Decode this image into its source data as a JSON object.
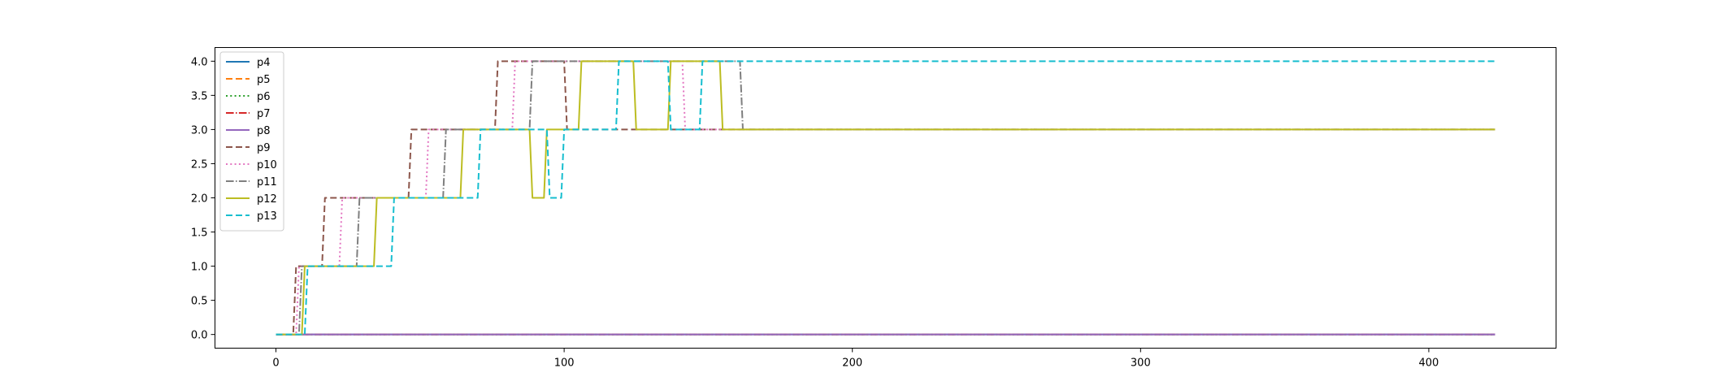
{
  "chart_data": {
    "type": "line",
    "title": "",
    "xlabel": "",
    "ylabel": "",
    "xlim": [
      -21.15,
      444.15
    ],
    "ylim": [
      -0.2,
      4.2
    ],
    "xticks": [
      0,
      100,
      200,
      300,
      400
    ],
    "yticks": [
      0.0,
      0.5,
      1.0,
      1.5,
      2.0,
      2.5,
      3.0,
      3.5,
      4.0
    ],
    "grid": false,
    "legend_position": "upper-left",
    "series": [
      {
        "name": "p4",
        "color": "#1f77b4",
        "dash": "solid",
        "points": [
          [
            0,
            0
          ],
          [
            423,
            0
          ]
        ]
      },
      {
        "name": "p5",
        "color": "#ff7f0e",
        "dash": "dashed",
        "points": [
          [
            0,
            0
          ],
          [
            423,
            0
          ]
        ]
      },
      {
        "name": "p6",
        "color": "#2ca02c",
        "dash": "dotted",
        "points": [
          [
            0,
            0
          ],
          [
            423,
            0
          ]
        ]
      },
      {
        "name": "p7",
        "color": "#d62728",
        "dash": "dashdot",
        "points": [
          [
            0,
            0
          ],
          [
            423,
            0
          ]
        ]
      },
      {
        "name": "p8",
        "color": "#9467bd",
        "dash": "solid",
        "points": [
          [
            0,
            0
          ],
          [
            423,
            0
          ]
        ]
      },
      {
        "name": "p9",
        "color": "#8c564b",
        "dash": "dashed",
        "points": [
          [
            0,
            0
          ],
          [
            6,
            0
          ],
          [
            7,
            1
          ],
          [
            16,
            1
          ],
          [
            17,
            2
          ],
          [
            46,
            2
          ],
          [
            47,
            3
          ],
          [
            76,
            3
          ],
          [
            77,
            4
          ],
          [
            100,
            4
          ],
          [
            101,
            3
          ],
          [
            423,
            3
          ]
        ]
      },
      {
        "name": "p10",
        "color": "#e377c2",
        "dash": "dotted",
        "points": [
          [
            0,
            0
          ],
          [
            7,
            0
          ],
          [
            8,
            1
          ],
          [
            22,
            1
          ],
          [
            23,
            2
          ],
          [
            52,
            2
          ],
          [
            53,
            3
          ],
          [
            82,
            3
          ],
          [
            83,
            4
          ],
          [
            141,
            4
          ],
          [
            142,
            3
          ],
          [
            423,
            3
          ]
        ]
      },
      {
        "name": "p11",
        "color": "#7f7f7f",
        "dash": "dashdot",
        "points": [
          [
            0,
            0
          ],
          [
            8,
            0
          ],
          [
            9,
            1
          ],
          [
            28,
            1
          ],
          [
            29,
            2
          ],
          [
            58,
            2
          ],
          [
            59,
            3
          ],
          [
            88,
            3
          ],
          [
            89,
            4
          ],
          [
            161,
            4
          ],
          [
            162,
            3
          ],
          [
            423,
            3
          ]
        ]
      },
      {
        "name": "p12",
        "color": "#bcbd22",
        "dash": "solid",
        "points": [
          [
            0,
            0
          ],
          [
            9,
            0
          ],
          [
            10,
            1
          ],
          [
            34,
            1
          ],
          [
            35,
            2
          ],
          [
            64,
            2
          ],
          [
            65,
            3
          ],
          [
            88,
            3
          ],
          [
            89,
            2
          ],
          [
            93,
            2
          ],
          [
            94,
            3
          ],
          [
            105,
            3
          ],
          [
            106,
            4
          ],
          [
            124,
            4
          ],
          [
            125,
            3
          ],
          [
            136,
            3
          ],
          [
            137,
            4
          ],
          [
            154,
            4
          ],
          [
            155,
            3
          ],
          [
            423,
            3
          ]
        ]
      },
      {
        "name": "p13",
        "color": "#17becf",
        "dash": "dashed",
        "points": [
          [
            0,
            0
          ],
          [
            10,
            0
          ],
          [
            11,
            1
          ],
          [
            40,
            1
          ],
          [
            41,
            2
          ],
          [
            70,
            2
          ],
          [
            71,
            3
          ],
          [
            94,
            3
          ],
          [
            95,
            2
          ],
          [
            99,
            2
          ],
          [
            100,
            3
          ],
          [
            118,
            3
          ],
          [
            119,
            4
          ],
          [
            136,
            4
          ],
          [
            137,
            3
          ],
          [
            147,
            3
          ],
          [
            148,
            4
          ],
          [
            423,
            4
          ]
        ]
      }
    ]
  }
}
